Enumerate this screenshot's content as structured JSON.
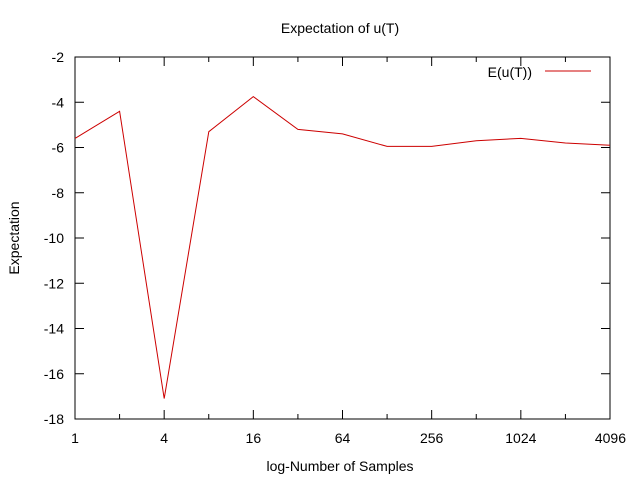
{
  "chart_data": {
    "type": "line",
    "title": "Expectation of u(T)",
    "xlabel": "log-Number of Samples",
    "ylabel": "Expectation",
    "x_scale": "log2",
    "xlim": [
      1,
      4096
    ],
    "ylim": [
      -18,
      -2
    ],
    "x_tick_values": [
      1,
      4,
      16,
      64,
      256,
      1024,
      4096
    ],
    "x_tick_labels": [
      "1",
      "4",
      "16",
      "64",
      "256",
      "1024",
      "4096"
    ],
    "x_minor_tick_values": [
      2,
      8,
      32,
      128,
      512,
      2048
    ],
    "y_tick_values": [
      -18,
      -16,
      -14,
      -12,
      -10,
      -8,
      -6,
      -4,
      -2
    ],
    "y_tick_labels": [
      "-18",
      "-16",
      "-14",
      "-12",
      "-10",
      "-8",
      "-6",
      "-4",
      "-2"
    ],
    "grid": false,
    "legend_position": "top-right",
    "series": [
      {
        "name": "E(u(T))",
        "color": "#cc0000",
        "x": [
          1,
          2,
          4,
          8,
          16,
          32,
          64,
          128,
          256,
          512,
          1024,
          2048,
          4096
        ],
        "y": [
          -5.6,
          -4.4,
          -17.1,
          -5.3,
          -3.75,
          -5.2,
          -5.4,
          -5.95,
          -5.95,
          -5.7,
          -5.6,
          -5.8,
          -5.9
        ]
      }
    ]
  }
}
